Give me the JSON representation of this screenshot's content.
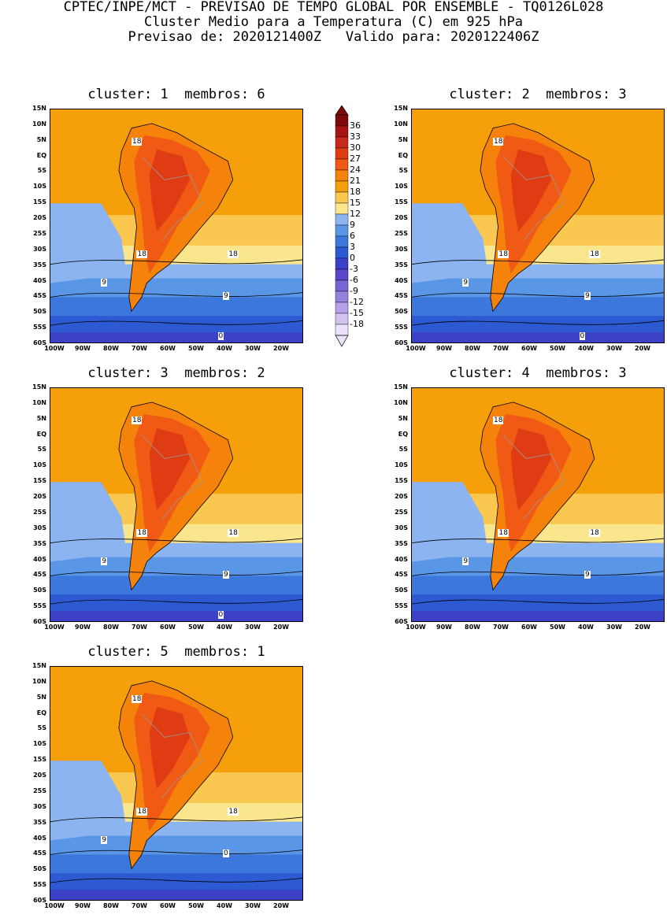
{
  "header": {
    "line1": "CPTEC/INPE/MCT - PREVISAO DE TEMPO GLOBAL POR ENSEMBLE - TQ0126L028",
    "line2": "Cluster Medio para a Temperatura (C) em 925 hPa",
    "line3": "Previsao de: 2020121400Z   Valido para: 2020122406Z"
  },
  "panels": [
    {
      "title": "cluster: 1  membros: 6",
      "contour_labels": [
        "18",
        "18",
        "18",
        "9",
        "9",
        "0"
      ]
    },
    {
      "title": "cluster: 2  membros: 3",
      "contour_labels": [
        "18",
        "18",
        "18",
        "9",
        "9",
        "0"
      ]
    },
    {
      "title": "cluster: 3  membros: 2",
      "contour_labels": [
        "18",
        "18",
        "18",
        "9",
        "9",
        "0"
      ]
    },
    {
      "title": "cluster: 4  membros: 3",
      "contour_labels": [
        "18",
        "18",
        "18",
        "9",
        "9"
      ]
    },
    {
      "title": "cluster: 5  membros: 1",
      "contour_labels": [
        "18",
        "18",
        "18",
        "9",
        "0"
      ]
    }
  ],
  "lat_ticks": [
    "15N",
    "10N",
    "5N",
    "EQ",
    "5S",
    "10S",
    "15S",
    "20S",
    "25S",
    "30S",
    "35S",
    "40S",
    "45S",
    "50S",
    "55S",
    "60S"
  ],
  "lon_ticks": [
    "100W",
    "90W",
    "80W",
    "70W",
    "60W",
    "50W",
    "40W",
    "30W",
    "20W"
  ],
  "colorbar": {
    "levels": [
      "36",
      "33",
      "30",
      "27",
      "24",
      "21",
      "18",
      "15",
      "12",
      "9",
      "6",
      "3",
      "0",
      "-3",
      "-6",
      "-9",
      "-12",
      "-15",
      "-18"
    ],
    "colors": [
      "#7f0a0a",
      "#a81414",
      "#c8281e",
      "#e03c14",
      "#f05a14",
      "#f5820a",
      "#f5a00a",
      "#fac850",
      "#fae68c",
      "#8cb4f0",
      "#5a96e6",
      "#3c78dc",
      "#2d5ad2",
      "#3c41c8",
      "#5a46c8",
      "#7864d2",
      "#9682dc",
      "#b4a0e6",
      "#d2c3f0",
      "#ebe1fa"
    ]
  }
}
